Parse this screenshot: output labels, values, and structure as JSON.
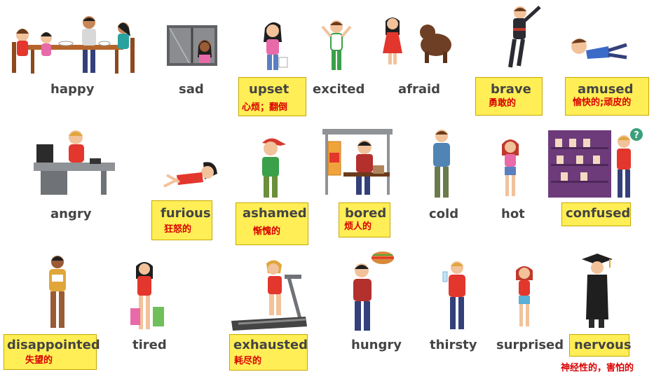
{
  "colors": {
    "highlight": "#ffee55",
    "highlight_border": "#c8a800",
    "word_text": "#444444",
    "translation_text": "#d90000",
    "skin": "#f2c29b",
    "skin_dark": "#9a5b35",
    "hair_brown": "#6b3b1c",
    "hair_black": "#1f1f1f",
    "hair_blond": "#e0a63a",
    "shirt_red": "#e3362d",
    "shirt_teal": "#2aa3a0",
    "pants_blue": "#34407a",
    "furniture_gray": "#8f9296"
  },
  "row1": [
    {
      "word": "happy",
      "translation": "",
      "icon": "family-dinner-illustration"
    },
    {
      "word": "sad",
      "translation": "",
      "icon": "girl-at-window-illustration"
    },
    {
      "word": "upset",
      "translation": "心烦；翻倒",
      "icon": "upset-girl-illustration"
    },
    {
      "word": "excited",
      "translation": "",
      "icon": "excited-boy-illustration"
    },
    {
      "word": "afraid",
      "translation": "",
      "icon": "girl-and-dog-illustration"
    },
    {
      "word": "brave",
      "translation": "勇敢的",
      "icon": "superhero-illustration"
    },
    {
      "word": "amused",
      "translation": "愉快的;顽皮的",
      "icon": "laughing-boy-illustration"
    }
  ],
  "row2": [
    {
      "word": "angry",
      "translation": "",
      "icon": "angry-man-at-desk-illustration"
    },
    {
      "word": "furious",
      "translation": "狂怒的",
      "icon": "furious-girl-illustration"
    },
    {
      "word": "ashamed",
      "translation": "惭愧的",
      "icon": "ashamed-boy-illustration"
    },
    {
      "word": "bored",
      "translation": "烦人的",
      "icon": "bored-man-at-bus-stop-illustration"
    },
    {
      "word": "cold",
      "translation": "",
      "icon": "cold-man-illustration"
    },
    {
      "word": "hot",
      "translation": "",
      "icon": "hot-girl-illustration"
    },
    {
      "word": "confused",
      "translation": "",
      "icon": "confused-man-at-shelf-illustration"
    }
  ],
  "row3": [
    {
      "word": "disappointed",
      "translation": "失望的",
      "icon": "disappointed-man-illustration"
    },
    {
      "word": "tired",
      "translation": "",
      "icon": "tired-girl-with-bags-illustration"
    },
    {
      "word": "exhausted",
      "translation": "耗尽的",
      "icon": "woman-on-treadmill-illustration"
    },
    {
      "word": "hungry",
      "translation": "",
      "icon": "hungry-man-illustration"
    },
    {
      "word": "thirsty",
      "translation": "",
      "icon": "thirsty-man-illustration"
    },
    {
      "word": "surprised",
      "translation": "",
      "icon": "surprised-girl-illustration"
    },
    {
      "word": "nervous",
      "translation": "神经性的，害怕的",
      "icon": "nervous-graduate-illustration"
    }
  ]
}
